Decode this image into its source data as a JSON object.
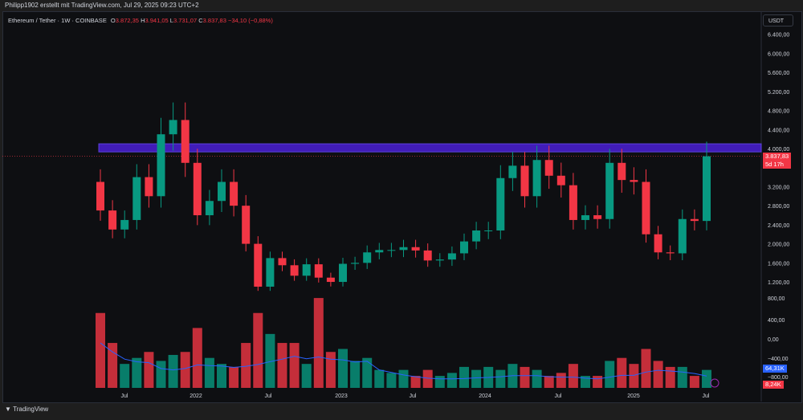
{
  "header": {
    "attribution": "Philipp1902 erstellt mit TradingView.com, Jul 29, 2025 09:23 UTC+2"
  },
  "legend": {
    "symbol": "Ethereum / Tether · 1W · COINBASE",
    "o_label": "O",
    "o": "3.872,35",
    "h_label": "H",
    "h": "3.941,05",
    "l_label": "L",
    "l": "3.731,07",
    "c_label": "C",
    "c": "3.837,83",
    "change": "−34,10 (−0,88%)"
  },
  "currency_button": "USDT",
  "price_tag": {
    "price": "3.837,83",
    "countdown": "5d 17h",
    "color": "#f23645"
  },
  "volume_ma_tag": {
    "value": "64,31K",
    "color": "#2962ff"
  },
  "volume_tag": {
    "value": "8,24K",
    "color": "#f23645"
  },
  "footer": {
    "logo_text": "TradingView"
  },
  "colors": {
    "up": "#089981",
    "down": "#f23645",
    "zone": "#4a1fd6",
    "vol_ma": "#2962ff",
    "bg": "#0e0f12"
  },
  "chart_data": {
    "type": "candlestick",
    "price_axis_ticks": [
      "6.400,00",
      "6.000,00",
      "5.600,00",
      "5.200,00",
      "4.800,00",
      "4.400,00",
      "4.000,00",
      "3.200,00",
      "2.800,00",
      "2.400,00",
      "2.000,00",
      "1.600,00",
      "1.200,00"
    ],
    "volume_axis_ticks": [
      "800,00",
      "400,00",
      "0,00",
      "−400,00",
      "−800,00"
    ],
    "x_tick_labels": [
      "Jul",
      "2022",
      "Jul",
      "2023",
      "Jul",
      "2024",
      "Jul",
      "2025",
      "Jul"
    ],
    "resistance_zone": [
      3930,
      4100
    ],
    "periods": [
      "2021-05",
      "2021-06",
      "2021-07",
      "2021-08",
      "2021-09",
      "2021-10",
      "2021-11",
      "2021-12",
      "2022-01",
      "2022-02",
      "2022-03",
      "2022-04",
      "2022-05",
      "2022-06",
      "2022-07",
      "2022-08",
      "2022-09",
      "2022-10",
      "2022-11",
      "2022-12",
      "2023-01",
      "2023-02",
      "2023-03",
      "2023-04",
      "2023-05",
      "2023-06",
      "2023-07",
      "2023-08",
      "2023-09",
      "2023-10",
      "2023-11",
      "2023-12",
      "2024-01",
      "2024-02",
      "2024-03",
      "2024-04",
      "2024-05",
      "2024-06",
      "2024-07",
      "2024-08",
      "2024-09",
      "2024-10",
      "2024-11",
      "2024-12",
      "2025-01",
      "2025-02",
      "2025-03",
      "2025-04",
      "2025-05",
      "2025-06",
      "2025-07"
    ],
    "open_first": 3300,
    "close": [
      2700,
      2300,
      2500,
      3400,
      3000,
      4300,
      4600,
      3700,
      2600,
      2900,
      3300,
      2800,
      2000,
      1100,
      1700,
      1550,
      1330,
      1570,
      1290,
      1200,
      1580,
      1600,
      1820,
      1870,
      1870,
      1930,
      1860,
      1650,
      1670,
      1800,
      2050,
      2280,
      2280,
      3380,
      3640,
      3000,
      3760,
      3430,
      3230,
      2500,
      2600,
      2520,
      3700,
      3340,
      3300,
      2200,
      1820,
      1800,
      2520,
      2480,
      3838
    ],
    "volume_k": [
      250,
      150,
      80,
      100,
      120,
      90,
      110,
      120,
      200,
      100,
      80,
      70,
      150,
      250,
      180,
      150,
      150,
      80,
      300,
      120,
      130,
      90,
      100,
      60,
      50,
      60,
      40,
      60,
      40,
      50,
      70,
      60,
      70,
      60,
      80,
      70,
      60,
      40,
      50,
      80,
      40,
      40,
      90,
      100,
      80,
      130,
      90,
      70,
      70,
      40,
      60
    ]
  }
}
